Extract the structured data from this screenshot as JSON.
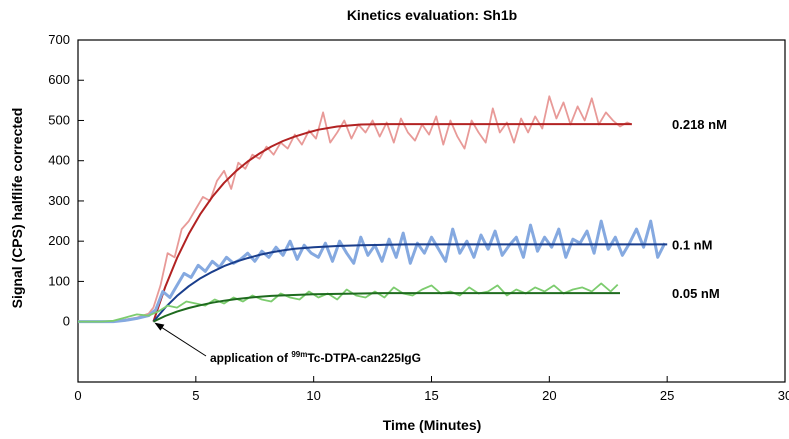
{
  "chart_data": {
    "type": "line",
    "title": "Kinetics evaluation: Sh1b",
    "xlabel": "Time (Minutes)",
    "ylabel": "Signal (CPS) halflife corrected",
    "xlim": [
      0,
      30
    ],
    "ylim": [
      -150,
      700
    ],
    "xticks": [
      0,
      5,
      10,
      15,
      20,
      25,
      30
    ],
    "yticks": [
      0,
      100,
      200,
      300,
      400,
      500,
      600,
      700
    ],
    "grid": false,
    "series": [
      {
        "name": "0.218 nM",
        "raw_color": "#e89a98",
        "fit_color": "#b22222",
        "raw_x": [
          0,
          0.5,
          1,
          1.5,
          2,
          2.5,
          3,
          3.2,
          3.5,
          3.8,
          4.1,
          4.4,
          4.7,
          5.0,
          5.3,
          5.6,
          5.9,
          6.2,
          6.5,
          6.8,
          7.1,
          7.4,
          7.7,
          8.0,
          8.3,
          8.6,
          8.9,
          9.2,
          9.5,
          9.8,
          10.1,
          10.4,
          10.7,
          11.0,
          11.3,
          11.6,
          11.9,
          12.2,
          12.5,
          12.8,
          13.1,
          13.4,
          13.7,
          14.0,
          14.3,
          14.6,
          14.9,
          15.2,
          15.5,
          15.8,
          16.1,
          16.4,
          16.7,
          17.0,
          17.3,
          17.6,
          17.9,
          18.2,
          18.5,
          18.8,
          19.1,
          19.4,
          19.7,
          20.0,
          20.3,
          20.6,
          20.9,
          21.2,
          21.5,
          21.8,
          22.1,
          22.4,
          22.7,
          23.0,
          23.3,
          23.5
        ],
        "raw_y": [
          0,
          0,
          0,
          0,
          5,
          10,
          20,
          35,
          90,
          170,
          160,
          230,
          250,
          280,
          310,
          300,
          350,
          375,
          330,
          395,
          380,
          415,
          405,
          435,
          415,
          445,
          430,
          465,
          440,
          475,
          455,
          520,
          445,
          470,
          500,
          455,
          490,
          470,
          500,
          460,
          495,
          445,
          505,
          470,
          450,
          490,
          465,
          510,
          440,
          500,
          460,
          430,
          500,
          470,
          445,
          530,
          470,
          495,
          445,
          505,
          470,
          510,
          480,
          560,
          505,
          545,
          490,
          535,
          500,
          555,
          490,
          520,
          500,
          485,
          495,
          490
        ],
        "fit_x": [
          3.2,
          3.7,
          4.2,
          4.7,
          5.2,
          5.7,
          6.2,
          6.7,
          7.2,
          7.7,
          8.2,
          8.7,
          9.2,
          9.7,
          10.2,
          11,
          12,
          13,
          14,
          15,
          16,
          17,
          18,
          19,
          20,
          21,
          22,
          23,
          23.5
        ],
        "fit_y": [
          0,
          86,
          158,
          218,
          268,
          310,
          345,
          374,
          398,
          418,
          435,
          449,
          460,
          469,
          477,
          485,
          490,
          491,
          491,
          491,
          491,
          491,
          491,
          491,
          491,
          491,
          491,
          491,
          491
        ]
      },
      {
        "name": "0.1 nM",
        "raw_color": "#85a9e0",
        "fit_color": "#1a3e8c",
        "raw_x": [
          0,
          0.5,
          1,
          1.5,
          2,
          2.5,
          3,
          3.3,
          3.6,
          3.9,
          4.2,
          4.5,
          4.8,
          5.1,
          5.4,
          5.7,
          6.0,
          6.3,
          6.6,
          6.9,
          7.2,
          7.5,
          7.8,
          8.1,
          8.4,
          8.7,
          9.0,
          9.3,
          9.6,
          9.9,
          10.2,
          10.5,
          10.8,
          11.1,
          11.4,
          11.7,
          12.0,
          12.3,
          12.6,
          12.9,
          13.2,
          13.5,
          13.8,
          14.1,
          14.4,
          14.7,
          15.0,
          15.3,
          15.6,
          15.9,
          16.2,
          16.5,
          16.8,
          17.1,
          17.4,
          17.7,
          18.0,
          18.3,
          18.6,
          18.9,
          19.2,
          19.5,
          19.8,
          20.1,
          20.4,
          20.7,
          21.0,
          21.3,
          21.6,
          21.9,
          22.2,
          22.5,
          22.8,
          23.1,
          23.4,
          23.7,
          24.0,
          24.3,
          24.6,
          24.9
        ],
        "raw_y": [
          0,
          0,
          0,
          0,
          3,
          8,
          15,
          30,
          75,
          60,
          90,
          120,
          110,
          140,
          125,
          150,
          135,
          160,
          145,
          155,
          170,
          150,
          175,
          160,
          185,
          165,
          200,
          155,
          190,
          170,
          160,
          195,
          150,
          200,
          170,
          145,
          210,
          165,
          190,
          150,
          205,
          160,
          220,
          145,
          195,
          170,
          210,
          180,
          150,
          230,
          170,
          200,
          160,
          215,
          180,
          225,
          165,
          190,
          210,
          160,
          240,
          175,
          210,
          185,
          230,
          160,
          205,
          195,
          225,
          170,
          250,
          180,
          210,
          165,
          195,
          230,
          185,
          250,
          160,
          195
        ],
        "fit_x": [
          3.2,
          3.7,
          4.2,
          4.7,
          5.2,
          5.7,
          6.2,
          6.7,
          7.2,
          7.7,
          8.2,
          8.7,
          9.2,
          10,
          11,
          12,
          13,
          14,
          15,
          16,
          17,
          18,
          19,
          20,
          21,
          22,
          23,
          24,
          25
        ],
        "fit_y": [
          0,
          35,
          64,
          88,
          108,
          124,
          138,
          149,
          158,
          166,
          172,
          177,
          181,
          185,
          188,
          190,
          191,
          192,
          192,
          192,
          192,
          192,
          192,
          192,
          192,
          192,
          192,
          192,
          192
        ]
      },
      {
        "name": "0.05 nM",
        "raw_color": "#7ccc6e",
        "fit_color": "#1e6b1e",
        "raw_x": [
          0,
          0.5,
          1,
          1.5,
          2,
          2.5,
          3,
          3.4,
          3.8,
          4.2,
          4.6,
          5.0,
          5.4,
          5.8,
          6.2,
          6.6,
          7.0,
          7.4,
          7.8,
          8.2,
          8.6,
          9.0,
          9.4,
          9.8,
          10.2,
          10.6,
          11.0,
          11.4,
          11.8,
          12.2,
          12.6,
          13.0,
          13.4,
          13.8,
          14.2,
          14.6,
          15.0,
          15.4,
          15.8,
          16.2,
          16.6,
          17.0,
          17.4,
          17.8,
          18.2,
          18.6,
          19.0,
          19.4,
          19.8,
          20.2,
          20.6,
          21.0,
          21.4,
          21.8,
          22.2,
          22.6,
          22.9
        ],
        "raw_y": [
          0,
          0,
          0,
          2,
          10,
          18,
          15,
          25,
          40,
          35,
          50,
          45,
          40,
          55,
          45,
          60,
          50,
          65,
          55,
          50,
          70,
          60,
          55,
          75,
          60,
          70,
          55,
          80,
          65,
          60,
          75,
          60,
          85,
          70,
          65,
          80,
          90,
          70,
          75,
          65,
          85,
          70,
          75,
          90,
          65,
          80,
          70,
          85,
          75,
          90,
          70,
          80,
          85,
          75,
          95,
          75,
          92
        ],
        "fit_x": [
          3.2,
          3.7,
          4.2,
          4.7,
          5.2,
          5.7,
          6.2,
          6.7,
          7.2,
          7.7,
          8.2,
          9,
          10,
          11,
          12,
          13,
          14,
          15,
          16,
          17,
          18,
          19,
          20,
          21,
          22,
          23
        ],
        "fit_y": [
          0,
          14,
          25,
          34,
          41,
          47,
          52,
          56,
          59,
          62,
          64,
          66,
          68,
          69,
          70,
          71,
          71,
          71,
          71,
          71,
          71,
          71,
          71,
          71,
          71,
          71
        ]
      }
    ],
    "annotation": {
      "prefix": "application of ",
      "superscript": "99m",
      "suffix": "Tc-DTPA-can225IgG",
      "arrow_target_x": 3.2,
      "arrow_target_y": 0
    }
  }
}
